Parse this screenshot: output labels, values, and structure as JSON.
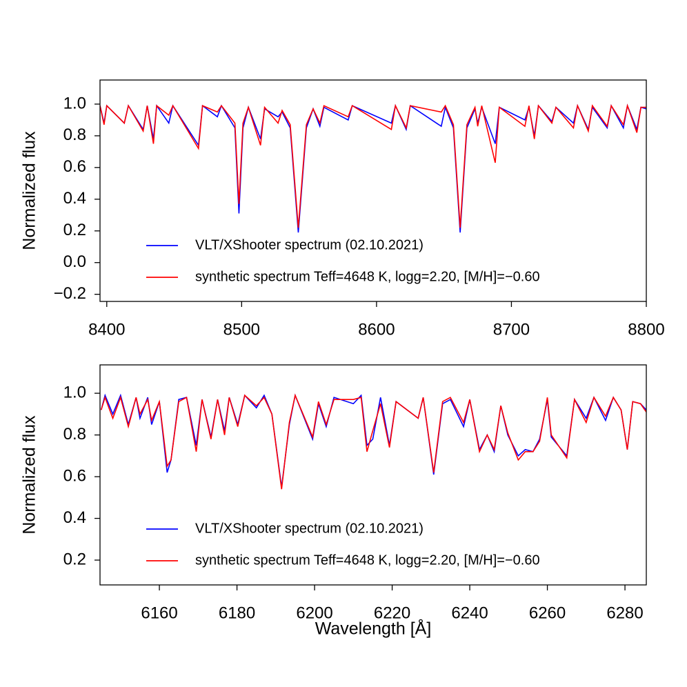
{
  "chart_data": [
    {
      "type": "line",
      "ylabel": "Normalized flux",
      "legend": "lower left",
      "grid": false,
      "xlim": [
        8395,
        8800
      ],
      "ylim": [
        -0.245,
        1.152
      ],
      "xticks": [
        8400,
        8500,
        8600,
        8700,
        8800
      ],
      "yticks": [
        {
          "value": -0.2,
          "label": "−0.2"
        },
        {
          "value": 0,
          "label": "0.0"
        },
        0.2,
        0.4,
        0.6,
        0.8,
        {
          "value": 1,
          "label": "1.0"
        }
      ],
      "x": [
        8395,
        8398,
        8400,
        8413,
        8416,
        8427,
        8430,
        8434.6,
        8437,
        8446,
        8449,
        8468,
        8471,
        8482,
        8485,
        8495,
        8498,
        8501,
        8505,
        8514,
        8517,
        8527,
        8530,
        8536,
        8542,
        8548,
        8553,
        8558,
        8561,
        8579,
        8582,
        8611,
        8614,
        8622,
        8625,
        8648,
        8651,
        8657,
        8662,
        8667,
        8673,
        8675,
        8678,
        8688,
        8691,
        8710,
        8713,
        8717,
        8720,
        8730,
        8733,
        8746,
        8749,
        8757,
        8760,
        8771,
        8774,
        8783,
        8786,
        8793,
        8796,
        8800
      ],
      "series": [
        {
          "name": "VLT/XShooter spectrum (02.10.2021)",
          "color": "#0000ff",
          "values": [
            0.99,
            0.88,
            0.99,
            0.88,
            0.99,
            0.84,
            0.99,
            0.78,
            0.99,
            0.88,
            0.99,
            0.74,
            0.99,
            0.92,
            0.99,
            0.85,
            0.31,
            0.85,
            0.98,
            0.78,
            0.97,
            0.92,
            0.95,
            0.85,
            0.19,
            0.85,
            0.97,
            0.86,
            0.98,
            0.9,
            0.99,
            0.88,
            0.99,
            0.84,
            0.99,
            0.86,
            0.98,
            0.85,
            0.19,
            0.85,
            0.97,
            0.88,
            0.98,
            0.75,
            0.98,
            0.9,
            0.98,
            0.8,
            0.99,
            0.89,
            0.98,
            0.88,
            0.99,
            0.84,
            0.98,
            0.85,
            0.99,
            0.85,
            0.99,
            0.84,
            0.98,
            0.97
          ]
        },
        {
          "name": "synthetic spectrum Teff=4648 K, logg=2.20, [M/H]=−0.60",
          "color": "#ff0000",
          "values": [
            0.99,
            0.87,
            0.99,
            0.88,
            0.99,
            0.83,
            0.99,
            0.75,
            0.99,
            0.93,
            0.99,
            0.72,
            0.99,
            0.95,
            0.99,
            0.88,
            0.37,
            0.88,
            0.98,
            0.74,
            0.98,
            0.88,
            0.96,
            0.87,
            0.22,
            0.87,
            0.97,
            0.88,
            0.99,
            0.92,
            0.99,
            0.84,
            0.99,
            0.85,
            0.99,
            0.95,
            0.99,
            0.87,
            0.22,
            0.87,
            0.98,
            0.86,
            0.99,
            0.63,
            0.98,
            0.86,
            0.99,
            0.78,
            0.99,
            0.88,
            0.98,
            0.85,
            0.99,
            0.83,
            0.99,
            0.86,
            0.99,
            0.87,
            0.99,
            0.82,
            0.98,
            0.98
          ]
        }
      ]
    },
    {
      "type": "line",
      "ylabel": "Normalized flux",
      "xlabel": "Wavelength [Å]",
      "legend": "lower left",
      "grid": false,
      "xlim": [
        6144.7,
        6285.5
      ],
      "ylim": [
        0.081,
        1.136
      ],
      "xticks": [
        6160,
        6180,
        6200,
        6220,
        6240,
        6260,
        6280
      ],
      "yticks": [
        0.2,
        0.4,
        0.6,
        0.8,
        {
          "value": 1,
          "label": "1.0"
        }
      ],
      "x": [
        6145,
        6146,
        6148,
        6150,
        6152,
        6154,
        6155,
        6157,
        6158,
        6160,
        6162,
        6163,
        6165,
        6167,
        6169.5,
        6171,
        6173.3,
        6175,
        6176.8,
        6178,
        6180.2,
        6182,
        6185,
        6187,
        6189,
        6191.5,
        6193.5,
        6195,
        6199.5,
        6201,
        6203,
        6205,
        6210,
        6212,
        6213.5,
        6215,
        6217,
        6219.3,
        6221,
        6226.7,
        6228,
        6230.7,
        6233,
        6235,
        6238.4,
        6240,
        6242.5,
        6244.5,
        6246.3,
        6248,
        6249.8,
        6252.5,
        6254.3,
        6256.3,
        6258,
        6260,
        6261,
        6265,
        6267,
        6270,
        6272,
        6275,
        6277,
        6279,
        6280.6,
        6282,
        6284,
        6285.5
      ],
      "series": [
        {
          "name": "VLT/XShooter spectrum (02.10.2021)",
          "color": "#0000ff",
          "values": [
            0.92,
            0.99,
            0.9,
            0.99,
            0.85,
            0.98,
            0.88,
            0.98,
            0.85,
            0.96,
            0.62,
            0.68,
            0.97,
            0.98,
            0.75,
            0.97,
            0.79,
            0.97,
            0.82,
            0.98,
            0.85,
            0.99,
            0.93,
            0.99,
            0.9,
            0.55,
            0.85,
            0.99,
            0.78,
            0.95,
            0.84,
            0.98,
            0.95,
            0.99,
            0.75,
            0.78,
            0.98,
            0.75,
            0.96,
            0.88,
            0.98,
            0.61,
            0.95,
            0.97,
            0.84,
            0.97,
            0.73,
            0.8,
            0.72,
            0.94,
            0.8,
            0.7,
            0.73,
            0.72,
            0.78,
            0.97,
            0.79,
            0.7,
            0.97,
            0.88,
            0.98,
            0.87,
            0.98,
            0.92,
            0.73,
            0.96,
            0.95,
            0.92
          ]
        },
        {
          "name": "synthetic spectrum Teff=4648 K, logg=2.20, [M/H]=−0.60",
          "color": "#ff0000",
          "values": [
            0.92,
            0.98,
            0.88,
            0.98,
            0.84,
            0.98,
            0.9,
            0.97,
            0.87,
            0.96,
            0.65,
            0.68,
            0.96,
            0.98,
            0.72,
            0.97,
            0.78,
            0.97,
            0.8,
            0.98,
            0.84,
            0.99,
            0.94,
            0.98,
            0.9,
            0.54,
            0.86,
            0.99,
            0.79,
            0.96,
            0.85,
            0.97,
            0.97,
            0.98,
            0.72,
            0.82,
            0.95,
            0.74,
            0.96,
            0.88,
            0.98,
            0.62,
            0.96,
            0.98,
            0.86,
            0.97,
            0.72,
            0.8,
            0.73,
            0.94,
            0.81,
            0.68,
            0.72,
            0.72,
            0.77,
            0.98,
            0.8,
            0.69,
            0.97,
            0.86,
            0.98,
            0.89,
            0.98,
            0.92,
            0.73,
            0.96,
            0.95,
            0.91
          ]
        }
      ]
    }
  ]
}
